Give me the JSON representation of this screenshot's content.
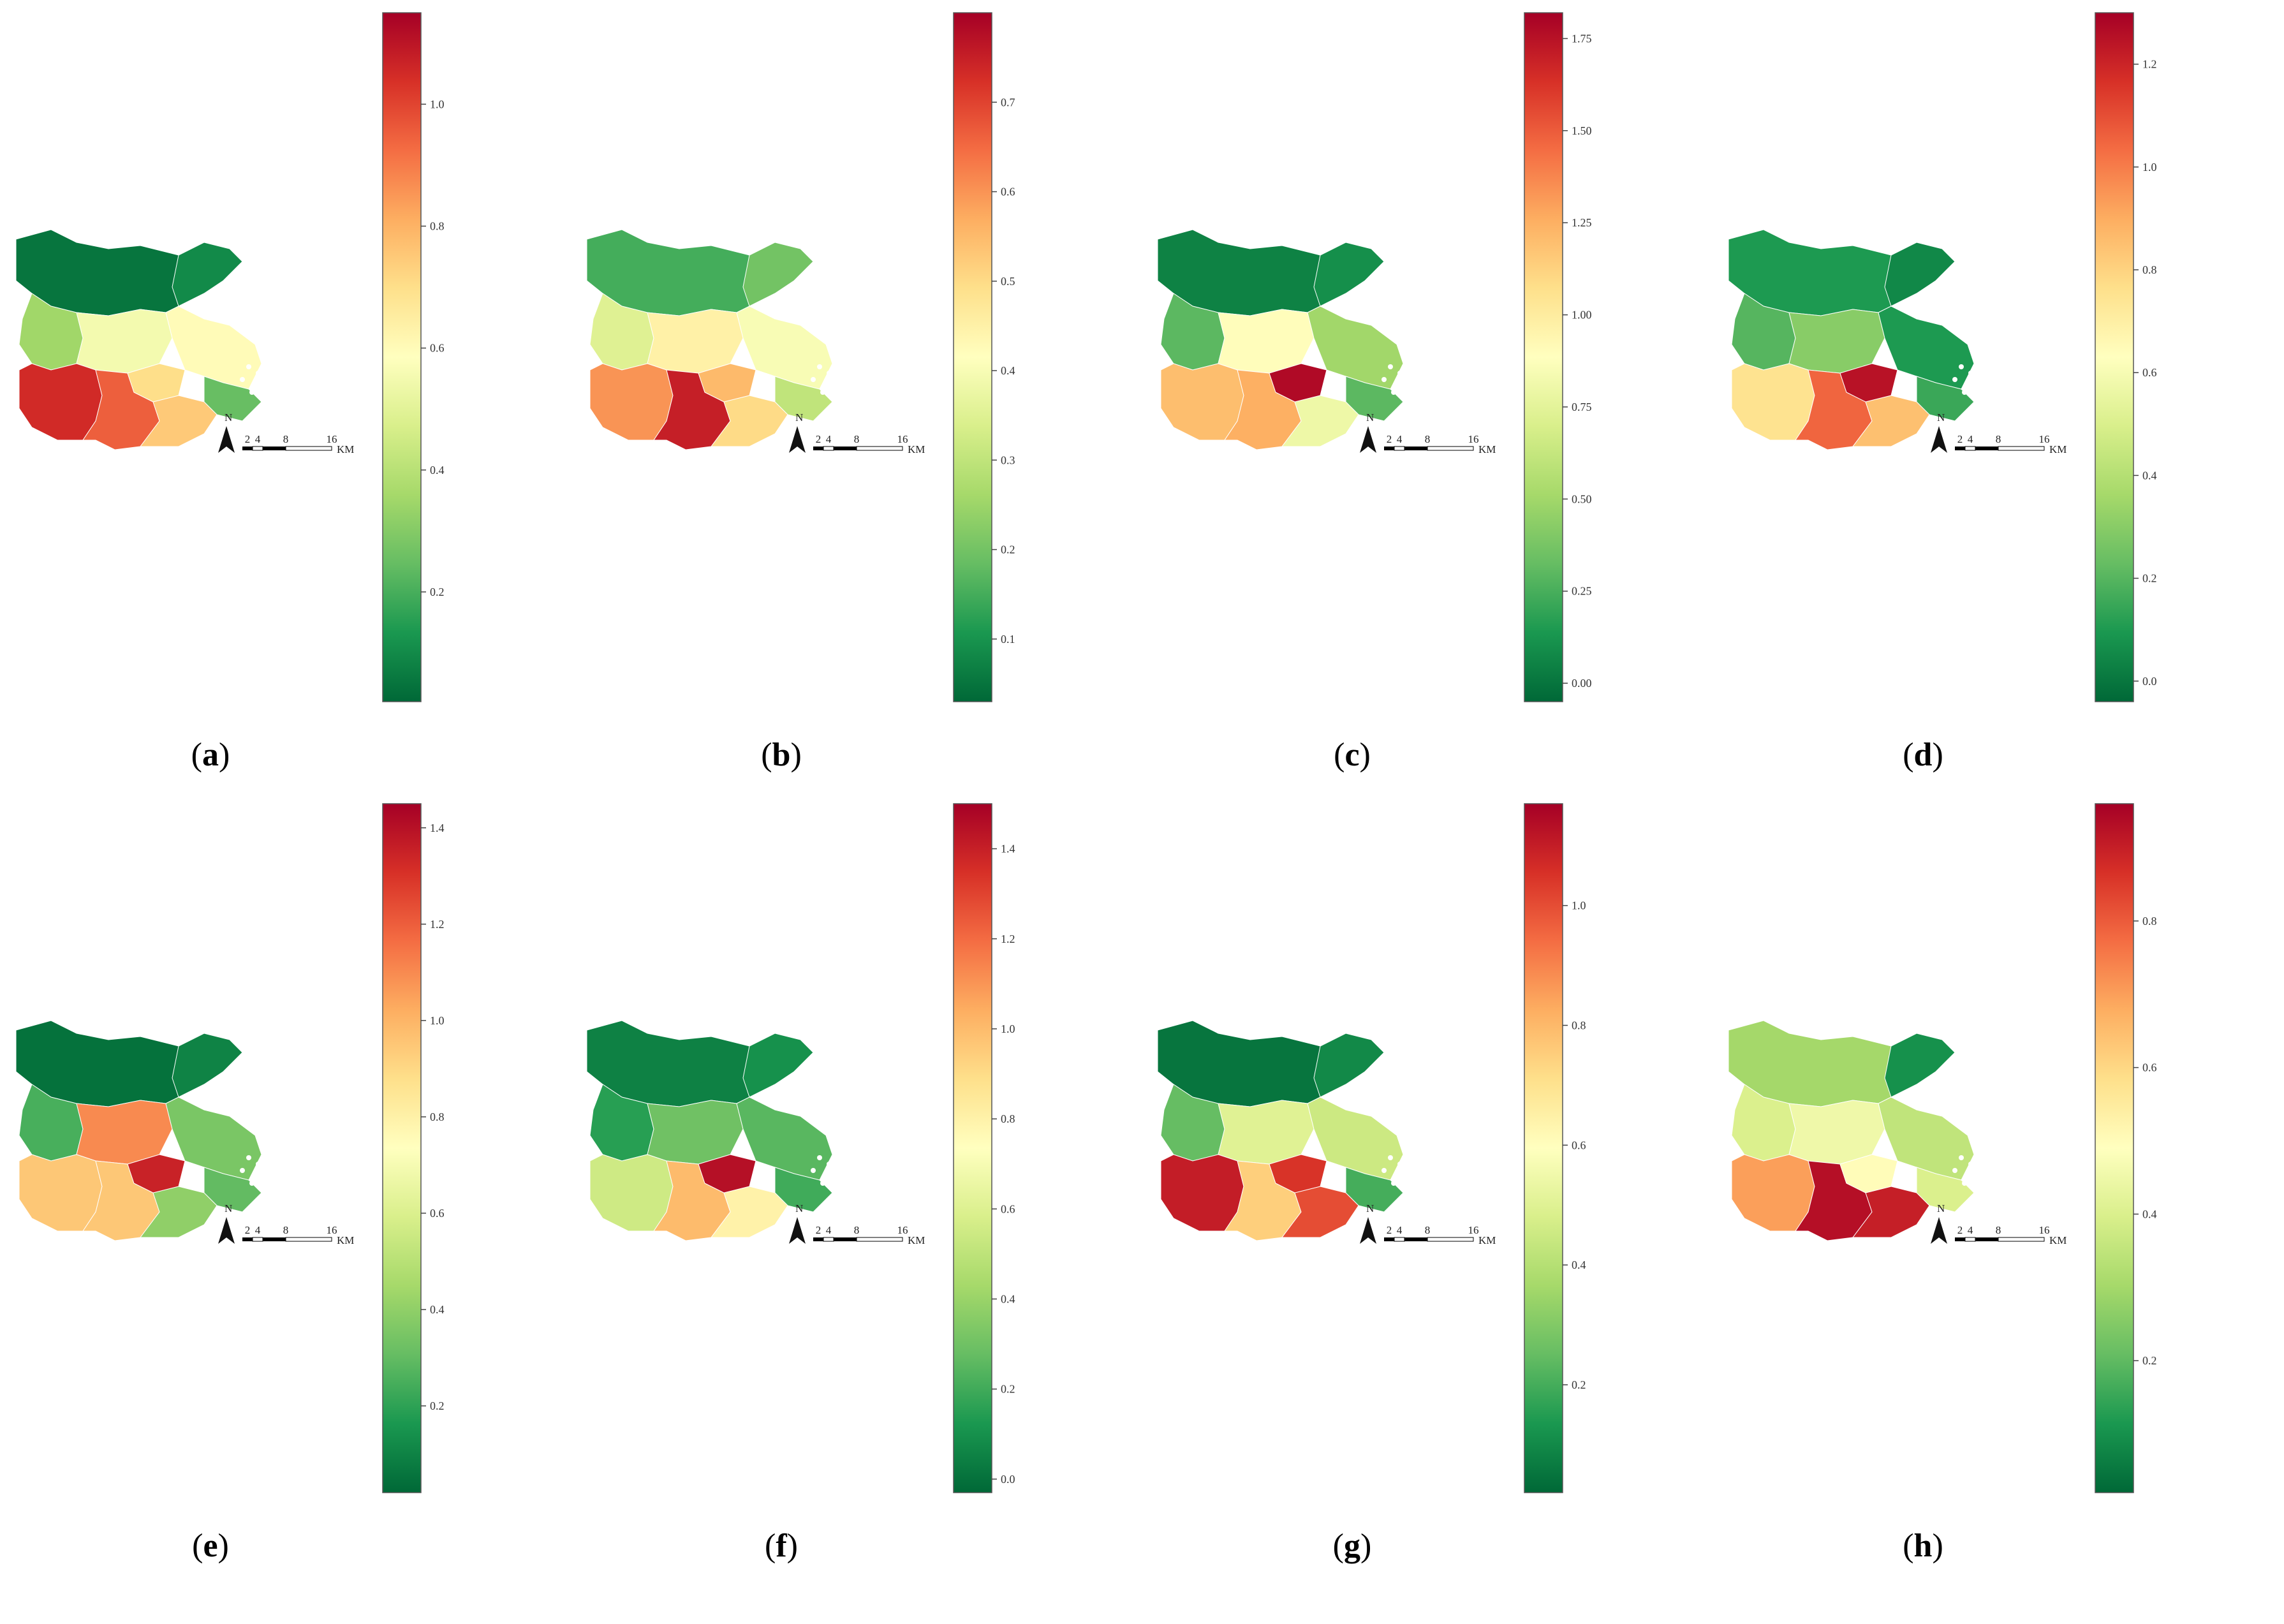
{
  "figure": {
    "scale_bar": {
      "ticks": [
        "2",
        "4",
        "8",
        "16"
      ],
      "unit": "KM"
    },
    "north_label": "N",
    "colors": {
      "ramp": [
        "#006837",
        "#1a9850",
        "#66bd63",
        "#a6d96a",
        "#d9ef8b",
        "#ffffbf",
        "#fee08b",
        "#fdae61",
        "#f46d43",
        "#d73027",
        "#a50026"
      ]
    },
    "panels": [
      {
        "label_open": "(",
        "label_letter": "a",
        "label_close": ")",
        "colorbar": {
          "min": 0.02,
          "max": 1.15,
          "ticks": [
            {
              "value": 0.2,
              "label": "0.2"
            },
            {
              "value": 0.4,
              "label": "0.4"
            },
            {
              "value": 0.6,
              "label": "0.6"
            },
            {
              "value": 0.8,
              "label": "0.8"
            },
            {
              "value": 1.0,
              "label": "1.0"
            }
          ]
        },
        "regions": {
          "north": 0.05,
          "north_east": 0.1,
          "middle_west": 0.35,
          "middle_center": 0.55,
          "middle_east": 0.6,
          "east": 0.25,
          "south_center": 0.95,
          "south_west": 1.05,
          "south_east": 0.75,
          "center": 0.7
        }
      },
      {
        "label_open": "(",
        "label_letter": "b",
        "label_close": ")",
        "colorbar": {
          "min": 0.03,
          "max": 0.8,
          "ticks": [
            {
              "value": 0.1,
              "label": "0.1"
            },
            {
              "value": 0.2,
              "label": "0.2"
            },
            {
              "value": 0.3,
              "label": "0.3"
            },
            {
              "value": 0.4,
              "label": "0.4"
            },
            {
              "value": 0.5,
              "label": "0.5"
            },
            {
              "value": 0.6,
              "label": "0.6"
            },
            {
              "value": 0.7,
              "label": "0.7"
            }
          ]
        },
        "regions": {
          "north": 0.15,
          "north_east": 0.2,
          "middle_west": 0.35,
          "middle_center": 0.45,
          "middle_east": 0.4,
          "east": 0.3,
          "south_center": 0.75,
          "south_west": 0.6,
          "south_east": 0.5,
          "center": 0.55
        }
      },
      {
        "label_open": "(",
        "label_letter": "c",
        "label_close": ")",
        "colorbar": {
          "min": -0.05,
          "max": 1.82,
          "ticks": [
            {
              "value": 0.0,
              "label": "0.00"
            },
            {
              "value": 0.25,
              "label": "0.25"
            },
            {
              "value": 0.5,
              "label": "0.50"
            },
            {
              "value": 0.75,
              "label": "0.75"
            },
            {
              "value": 1.0,
              "label": "1.00"
            },
            {
              "value": 1.25,
              "label": "1.25"
            },
            {
              "value": 1.5,
              "label": "1.50"
            },
            {
              "value": 1.75,
              "label": "1.75"
            }
          ]
        },
        "regions": {
          "north": 0.05,
          "north_east": 0.1,
          "middle_west": 0.3,
          "middle_center": 0.9,
          "middle_east": 0.5,
          "east": 0.3,
          "south_center": 1.25,
          "south_west": 1.2,
          "south_east": 0.8,
          "center": 1.78
        }
      },
      {
        "label_open": "(",
        "label_letter": "d",
        "label_close": ")",
        "colorbar": {
          "min": -0.04,
          "max": 1.3,
          "ticks": [
            {
              "value": 0.0,
              "label": "0.0"
            },
            {
              "value": 0.2,
              "label": "0.2"
            },
            {
              "value": 0.4,
              "label": "0.4"
            },
            {
              "value": 0.6,
              "label": "0.6"
            },
            {
              "value": 0.8,
              "label": "0.8"
            },
            {
              "value": 1.0,
              "label": "1.0"
            },
            {
              "value": 1.2,
              "label": "1.2"
            }
          ]
        },
        "regions": {
          "north": 0.1,
          "north_east": 0.05,
          "middle_west": 0.2,
          "middle_center": 0.3,
          "middle_east": 0.1,
          "east": 0.15,
          "south_center": 1.05,
          "south_west": 0.75,
          "south_east": 0.85,
          "center": 1.25
        }
      },
      {
        "label_open": "(",
        "label_letter": "e",
        "label_close": ")",
        "colorbar": {
          "min": 0.02,
          "max": 1.45,
          "ticks": [
            {
              "value": 0.2,
              "label": "0.2"
            },
            {
              "value": 0.4,
              "label": "0.4"
            },
            {
              "value": 0.6,
              "label": "0.6"
            },
            {
              "value": 0.8,
              "label": "0.8"
            },
            {
              "value": 1.0,
              "label": "1.0"
            },
            {
              "value": 1.2,
              "label": "1.2"
            },
            {
              "value": 1.4,
              "label": "1.4"
            }
          ]
        },
        "regions": {
          "north": 0.05,
          "north_east": 0.1,
          "middle_west": 0.25,
          "middle_center": 1.1,
          "middle_east": 0.35,
          "east": 0.3,
          "south_center": 0.95,
          "south_west": 0.95,
          "south_east": 0.4,
          "center": 1.35
        }
      },
      {
        "label_open": "(",
        "label_letter": "f",
        "label_close": ")",
        "colorbar": {
          "min": -0.03,
          "max": 1.5,
          "ticks": [
            {
              "value": 0.0,
              "label": "0.0"
            },
            {
              "value": 0.2,
              "label": "0.2"
            },
            {
              "value": 0.4,
              "label": "0.4"
            },
            {
              "value": 0.6,
              "label": "0.6"
            },
            {
              "value": 0.8,
              "label": "0.8"
            },
            {
              "value": 1.0,
              "label": "1.0"
            },
            {
              "value": 1.2,
              "label": "1.2"
            },
            {
              "value": 1.4,
              "label": "1.4"
            }
          ]
        },
        "regions": {
          "north": 0.05,
          "north_east": 0.1,
          "middle_west": 0.15,
          "middle_center": 0.3,
          "middle_east": 0.25,
          "east": 0.2,
          "south_center": 1.0,
          "south_west": 0.55,
          "south_east": 0.8,
          "center": 1.45
        }
      },
      {
        "label_open": "(",
        "label_letter": "g",
        "label_close": ")",
        "colorbar": {
          "min": 0.02,
          "max": 1.17,
          "ticks": [
            {
              "value": 0.2,
              "label": "0.2"
            },
            {
              "value": 0.4,
              "label": "0.4"
            },
            {
              "value": 0.6,
              "label": "0.6"
            },
            {
              "value": 0.8,
              "label": "0.8"
            },
            {
              "value": 1.0,
              "label": "1.0"
            }
          ]
        },
        "regions": {
          "north": 0.05,
          "north_east": 0.1,
          "middle_west": 0.25,
          "middle_center": 0.5,
          "middle_east": 0.45,
          "east": 0.2,
          "south_center": 0.75,
          "south_west": 1.1,
          "south_east": 1.0,
          "center": 1.05
        }
      },
      {
        "label_open": "(",
        "label_letter": "h",
        "label_close": ")",
        "colorbar": {
          "min": 0.02,
          "max": 0.96,
          "ticks": [
            {
              "value": 0.2,
              "label": "0.2"
            },
            {
              "value": 0.4,
              "label": "0.4"
            },
            {
              "value": 0.6,
              "label": "0.6"
            },
            {
              "value": 0.8,
              "label": "0.8"
            }
          ]
        },
        "regions": {
          "north": 0.3,
          "north_east": 0.1,
          "middle_west": 0.4,
          "middle_center": 0.45,
          "middle_east": 0.35,
          "east": 0.4,
          "south_center": 0.93,
          "south_west": 0.7,
          "south_east": 0.9,
          "center": 0.5
        }
      }
    ]
  }
}
